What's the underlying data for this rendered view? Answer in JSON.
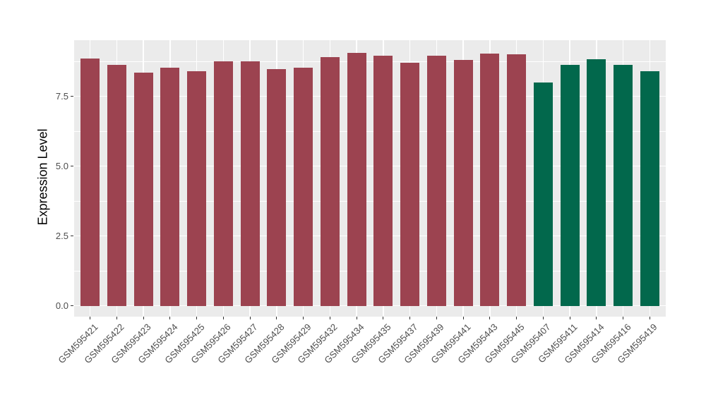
{
  "chart_data": {
    "type": "bar",
    "title": "",
    "ylabel": "Expression Level",
    "xlabel": "",
    "categories": [
      "GSM595421",
      "GSM595422",
      "GSM595423",
      "GSM595424",
      "GSM595425",
      "GSM595426",
      "GSM595427",
      "GSM595428",
      "GSM595429",
      "GSM595432",
      "GSM595434",
      "GSM595435",
      "GSM595437",
      "GSM595439",
      "GSM595441",
      "GSM595443",
      "GSM595445",
      "GSM595407",
      "GSM595411",
      "GSM595414",
      "GSM595416",
      "GSM595419"
    ],
    "values": [
      8.85,
      8.63,
      8.35,
      8.53,
      8.4,
      8.74,
      8.76,
      8.47,
      8.53,
      8.9,
      9.06,
      8.95,
      8.7,
      8.95,
      8.8,
      9.03,
      9.01,
      8.0,
      8.62,
      8.84,
      8.63,
      8.4
    ],
    "bar_colors": [
      "#9C4350",
      "#9C4350",
      "#9C4350",
      "#9C4350",
      "#9C4350",
      "#9C4350",
      "#9C4350",
      "#9C4350",
      "#9C4350",
      "#9C4350",
      "#9C4350",
      "#9C4350",
      "#9C4350",
      "#9C4350",
      "#9C4350",
      "#9C4350",
      "#9C4350",
      "#02684C",
      "#02684C",
      "#02684C",
      "#02684C",
      "#02684C"
    ],
    "ytick_labels": [
      "0.0",
      "2.5",
      "5.0",
      "7.5"
    ],
    "ytick_values": [
      0,
      2.5,
      5,
      7.5
    ],
    "yminor_values": [
      1.25,
      3.75,
      6.25,
      8.75
    ],
    "ylim": [
      -0.39,
      9.51
    ],
    "legend": "none",
    "grid": "on",
    "panel_background": "#EBEBEB",
    "grid_color": "#FFFFFF",
    "axis_text_color": "#4D4D4D",
    "tick_mark_color": "#333333"
  }
}
